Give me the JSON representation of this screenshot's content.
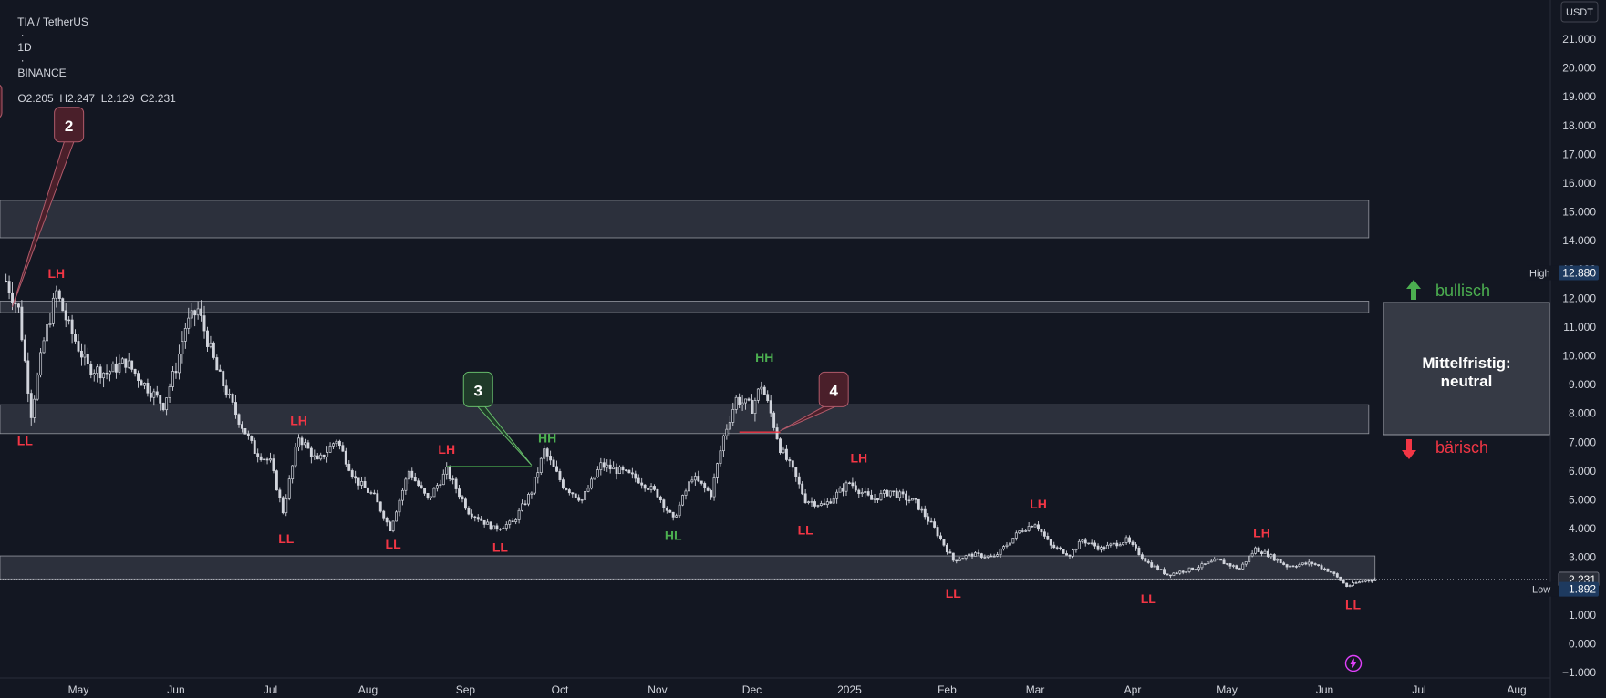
{
  "header": {
    "symbol": "TIA / TetherUS",
    "interval": "1D",
    "exchange": "BINANCE",
    "ohlc": "O2.205  H2.247  L2.129  C2.231",
    "currency": "USDT"
  },
  "chart_data": {
    "type": "candlestick",
    "y_axis": {
      "min": -1,
      "max": 21,
      "tick_labels": [
        "21.000",
        "20.000",
        "19.000",
        "18.000",
        "17.000",
        "16.000",
        "15.000",
        "14.000",
        "13.000",
        "12.000",
        "11.000",
        "10.000",
        "9.000",
        "8.000",
        "7.000",
        "6.000",
        "5.000",
        "4.000",
        "3.000",
        "2.000",
        "1.000",
        "0.000",
        "−1.000"
      ],
      "tick_values": [
        21,
        20,
        19,
        18,
        17,
        16,
        15,
        14,
        13,
        12,
        11,
        10,
        9,
        8,
        7,
        6,
        5,
        4,
        3,
        2,
        1,
        0,
        -1
      ]
    },
    "x_axis": {
      "labels": [
        "May",
        "Jun",
        "Jul",
        "Aug",
        "Sep",
        "Oct",
        "Nov",
        "Dec",
        "2025",
        "Feb",
        "Mar",
        "Apr",
        "May",
        "Jun",
        "Jul",
        "Aug"
      ],
      "dates": [
        "2024-05-01",
        "2024-06-01",
        "2024-07-01",
        "2024-08-01",
        "2024-09-01",
        "2024-10-01",
        "2024-11-01",
        "2024-12-01",
        "2025-01-01",
        "2025-02-01",
        "2025-03-01",
        "2025-04-01",
        "2025-05-01",
        "2025-06-01",
        "2025-07-01",
        "2025-08-01"
      ]
    },
    "price_path": [
      [
        "2024-04-08",
        12.6
      ],
      [
        "2024-04-12",
        11.6
      ],
      [
        "2024-04-16",
        8.0
      ],
      [
        "2024-04-20",
        10.5
      ],
      [
        "2024-04-24",
        12.2
      ],
      [
        "2024-04-28",
        11.0
      ],
      [
        "2024-05-04",
        9.6
      ],
      [
        "2024-05-10",
        9.4
      ],
      [
        "2024-05-16",
        9.8
      ],
      [
        "2024-05-22",
        9.0
      ],
      [
        "2024-05-28",
        8.3
      ],
      [
        "2024-06-01",
        9.6
      ],
      [
        "2024-06-04",
        11.0
      ],
      [
        "2024-06-08",
        11.6
      ],
      [
        "2024-06-14",
        9.5
      ],
      [
        "2024-06-20",
        8.0
      ],
      [
        "2024-06-26",
        6.7
      ],
      [
        "2024-07-01",
        6.3
      ],
      [
        "2024-07-05",
        4.6
      ],
      [
        "2024-07-10",
        7.2
      ],
      [
        "2024-07-16",
        6.3
      ],
      [
        "2024-07-22",
        7.1
      ],
      [
        "2024-07-28",
        5.7
      ],
      [
        "2024-08-03",
        5.1
      ],
      [
        "2024-08-08",
        4.0
      ],
      [
        "2024-08-14",
        6.0
      ],
      [
        "2024-08-20",
        5.0
      ],
      [
        "2024-08-26",
        6.0
      ],
      [
        "2024-09-02",
        4.6
      ],
      [
        "2024-09-10",
        4.0
      ],
      [
        "2024-09-16",
        4.2
      ],
      [
        "2024-09-22",
        5.3
      ],
      [
        "2024-09-26",
        6.7
      ],
      [
        "2024-10-02",
        5.5
      ],
      [
        "2024-10-08",
        5.0
      ],
      [
        "2024-10-14",
        6.2
      ],
      [
        "2024-10-20",
        6.0
      ],
      [
        "2024-10-26",
        5.7
      ],
      [
        "2024-11-01",
        5.2
      ],
      [
        "2024-11-06",
        4.3
      ],
      [
        "2024-11-12",
        5.8
      ],
      [
        "2024-11-18",
        5.2
      ],
      [
        "2024-11-22",
        7.2
      ],
      [
        "2024-11-26",
        8.5
      ],
      [
        "2024-12-01",
        8.2
      ],
      [
        "2024-12-04",
        9.0
      ],
      [
        "2024-12-07",
        8.0
      ],
      [
        "2024-12-10",
        6.8
      ],
      [
        "2024-12-14",
        6.0
      ],
      [
        "2024-12-18",
        5.0
      ],
      [
        "2024-12-24",
        4.8
      ],
      [
        "2025-01-01",
        5.6
      ],
      [
        "2025-01-08",
        5.0
      ],
      [
        "2025-01-14",
        5.3
      ],
      [
        "2025-01-22",
        4.9
      ],
      [
        "2025-01-28",
        4.0
      ],
      [
        "2025-02-03",
        2.9
      ],
      [
        "2025-02-09",
        3.1
      ],
      [
        "2025-02-16",
        3.0
      ],
      [
        "2025-02-24",
        3.9
      ],
      [
        "2025-03-01",
        4.2
      ],
      [
        "2025-03-06",
        3.4
      ],
      [
        "2025-03-12",
        3.1
      ],
      [
        "2025-03-16",
        3.6
      ],
      [
        "2025-03-22",
        3.3
      ],
      [
        "2025-03-30",
        3.6
      ],
      [
        "2025-04-06",
        2.8
      ],
      [
        "2025-04-12",
        2.4
      ],
      [
        "2025-04-20",
        2.6
      ],
      [
        "2025-04-28",
        2.9
      ],
      [
        "2025-05-05",
        2.6
      ],
      [
        "2025-05-10",
        3.3
      ],
      [
        "2025-05-14",
        3.1
      ],
      [
        "2025-05-20",
        2.7
      ],
      [
        "2025-05-28",
        2.8
      ],
      [
        "2025-06-03",
        2.5
      ],
      [
        "2025-06-08",
        2.0
      ],
      [
        "2025-06-14",
        2.2
      ],
      [
        "2025-06-17",
        2.231
      ]
    ],
    "zones": [
      {
        "low": 14.1,
        "high": 15.4,
        "x_end": "2025-06-15"
      },
      {
        "low": 11.5,
        "high": 11.9,
        "x_end": "2025-06-15"
      },
      {
        "low": 7.3,
        "high": 8.3,
        "x_end": "2025-06-15"
      },
      {
        "low": 2.25,
        "high": 3.05,
        "x_end": "2025-06-17"
      }
    ],
    "structure_labels": [
      {
        "text": "LH",
        "date": "2024-04-24",
        "price": 12.7,
        "kind": "bear"
      },
      {
        "text": "LL",
        "date": "2024-04-14",
        "price": 6.9,
        "kind": "bear"
      },
      {
        "text": "LH",
        "date": "2024-07-10",
        "price": 7.6,
        "kind": "bear"
      },
      {
        "text": "LH",
        "date": "2024-08-26",
        "price": 6.6,
        "kind": "bear"
      },
      {
        "text": "LL",
        "date": "2024-07-06",
        "price": 3.5,
        "kind": "bear"
      },
      {
        "text": "LL",
        "date": "2024-08-09",
        "price": 3.3,
        "kind": "bear"
      },
      {
        "text": "LL",
        "date": "2024-09-12",
        "price": 3.2,
        "kind": "bear"
      },
      {
        "text": "HH",
        "date": "2024-09-27",
        "price": 7.0,
        "kind": "bull"
      },
      {
        "text": "HL",
        "date": "2024-11-06",
        "price": 3.6,
        "kind": "bull"
      },
      {
        "text": "HH",
        "date": "2024-12-05",
        "price": 9.8,
        "kind": "bull"
      },
      {
        "text": "LL",
        "date": "2024-12-18",
        "price": 3.8,
        "kind": "bear"
      },
      {
        "text": "LH",
        "date": "2025-01-04",
        "price": 6.3,
        "kind": "bear"
      },
      {
        "text": "LL",
        "date": "2025-02-03",
        "price": 1.6,
        "kind": "bear"
      },
      {
        "text": "LH",
        "date": "2025-03-02",
        "price": 4.7,
        "kind": "bear"
      },
      {
        "text": "LL",
        "date": "2025-04-06",
        "price": 1.4,
        "kind": "bear"
      },
      {
        "text": "LH",
        "date": "2025-05-12",
        "price": 3.7,
        "kind": "bear"
      },
      {
        "text": "LL",
        "date": "2025-06-10",
        "price": 1.2,
        "kind": "bear"
      }
    ],
    "callouts": [
      {
        "text": "2",
        "date": "2024-04-28",
        "price": 18.0,
        "point_date": "2024-04-10",
        "point_price": 11.7,
        "kind": "bear"
      },
      {
        "text": "3",
        "date": "2024-09-05",
        "price": 8.8,
        "point_date": "2024-09-22",
        "point_price": 6.2,
        "kind": "bull"
      },
      {
        "text": "4",
        "date": "2024-12-27",
        "price": 8.8,
        "point_date": "2024-12-10",
        "point_price": 7.4,
        "kind": "bear"
      }
    ],
    "level_lines": [
      {
        "price": 6.15,
        "from": "2024-08-26",
        "to": "2024-09-22",
        "color": "#4caf50"
      },
      {
        "price": 7.35,
        "from": "2024-11-27",
        "to": "2024-12-10",
        "color": "#f23645"
      }
    ],
    "current_price": 2.231,
    "current_price_label": "2.231",
    "high": {
      "tag": "High",
      "value": 12.88,
      "label": "12.880"
    },
    "low": {
      "tag": "Low",
      "value": 1.892,
      "label": "1.892"
    }
  },
  "sentiment": {
    "bullish_label": "bullisch",
    "bearish_label": "bärisch",
    "box_text_line1": "Mittelfristig:",
    "box_text_line2": "neutral"
  },
  "colors": {
    "background": "#131722",
    "candle": "#d1d4dc",
    "bear_text": "#f23645",
    "bull_text": "#4caf50",
    "zone_fill": "#363a45",
    "zone_border": "#9598a1",
    "axis_text": "#d1d4dc",
    "high_tag_bg": "#1e3a5f",
    "bear_callout_bg": "#4a1f2a",
    "bull_callout_bg": "#1f3a29"
  }
}
